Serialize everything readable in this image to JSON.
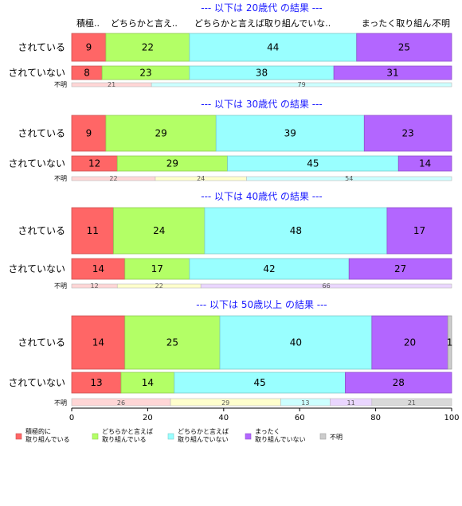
{
  "chart_data": {
    "type": "bar",
    "orientation": "horizontal",
    "stacked": "percent",
    "top_category_labels": [
      "積極..",
      "どちらかと言え..",
      "どちらかと言えば取り組んでいな..",
      "まったく取り組ん..",
      "不明"
    ],
    "legend": [
      {
        "label": "積極的に\n取り組んでいる",
        "color": "#ff6666"
      },
      {
        "label": "どちらかと言えば\n取り組んでいる",
        "color": "#b3ff66"
      },
      {
        "label": "どちらかと言えば\n取り組んでいない",
        "color": "#99ffff"
      },
      {
        "label": "まったく\n取り組んでいない",
        "color": "#b366ff"
      },
      {
        "label": "不明",
        "color": "#cccccc"
      }
    ],
    "x_ticks": [
      0,
      20,
      40,
      60,
      80,
      100
    ],
    "xlim": [
      0,
      100
    ],
    "panels": [
      {
        "title": "--- 以下は 20歳代 の結果 ---",
        "rows": [
          {
            "label": "されている",
            "values": [
              9,
              22,
              44,
              25,
              0
            ]
          },
          {
            "label": "されていない",
            "values": [
              8,
              23,
              38,
              31,
              0
            ]
          }
        ],
        "unknown": {
          "label": "不明",
          "values": [
            21,
            0,
            79,
            0,
            0
          ]
        }
      },
      {
        "title": "--- 以下は 30歳代 の結果 ---",
        "rows": [
          {
            "label": "されている",
            "values": [
              9,
              29,
              39,
              23,
              0
            ]
          },
          {
            "label": "されていない",
            "values": [
              12,
              29,
              45,
              14,
              0
            ]
          }
        ],
        "unknown": {
          "label": "不明",
          "values": [
            22,
            24,
            54,
            0,
            0
          ]
        }
      },
      {
        "title": "--- 以下は 40歳代 の結果 ---",
        "rows": [
          {
            "label": "されている",
            "values": [
              11,
              24,
              48,
              17,
              0
            ]
          },
          {
            "label": "されていない",
            "values": [
              14,
              17,
              42,
              27,
              0
            ]
          }
        ],
        "unknown": {
          "label": "不明",
          "values": [
            12,
            22,
            0,
            66,
            0
          ]
        }
      },
      {
        "title": "--- 以下は 50歳以上 の結果 ---",
        "rows": [
          {
            "label": "されている",
            "values": [
              14,
              25,
              40,
              20,
              1
            ]
          },
          {
            "label": "されていない",
            "values": [
              13,
              14,
              45,
              28,
              0
            ]
          }
        ],
        "unknown": {
          "label": "不明",
          "values": [
            26,
            29,
            13,
            11,
            21
          ]
        }
      }
    ]
  }
}
